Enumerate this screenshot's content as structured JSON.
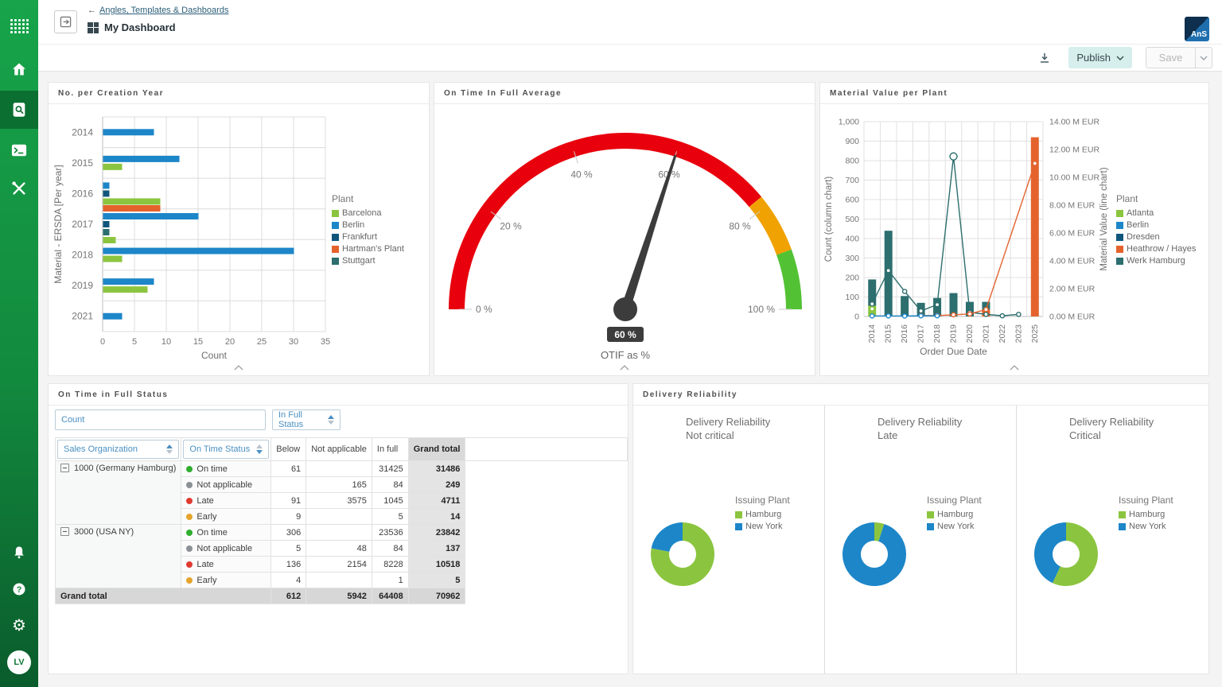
{
  "sidebar": {
    "avatar_initials": "LV"
  },
  "header": {
    "breadcrumb": "Angles, Templates & Dashboards",
    "title": "My Dashboard",
    "logo": "AnS"
  },
  "toolbar": {
    "publish": "Publish",
    "save": "Save"
  },
  "chart_data": [
    {
      "id": "creation_year",
      "type": "bar",
      "orientation": "horizontal",
      "title": "No. per Creation Year",
      "xlabel": "Count",
      "ylabel": "Material - ERSDA [Per year]",
      "xlim": [
        0,
        35
      ],
      "xticks": [
        0,
        5,
        10,
        15,
        20,
        25,
        30,
        35
      ],
      "grid": true,
      "legend_position": "right",
      "legend_title": "Plant",
      "legend": [
        {
          "label": "Barcelona",
          "color": "#8bc53f"
        },
        {
          "label": "Berlin",
          "color": "#1c86c8"
        },
        {
          "label": "Frankfurt",
          "color": "#10567c"
        },
        {
          "label": "Hartman's Plant",
          "color": "#e4632d"
        },
        {
          "label": "Stuttgart",
          "color": "#2d6e6e"
        }
      ],
      "categories": [
        "2014",
        "2015",
        "2016",
        "2017",
        "2018",
        "2019",
        "2021"
      ],
      "bars": [
        [
          {
            "plant": "Berlin",
            "value": 8
          }
        ],
        [
          {
            "plant": "Berlin",
            "value": 12
          },
          {
            "plant": "Barcelona",
            "value": 3
          }
        ],
        [
          {
            "plant": "Berlin",
            "value": 1
          },
          {
            "plant": "Frankfurt",
            "value": 1
          },
          {
            "plant": "Barcelona",
            "value": 9
          }
        ],
        [
          {
            "plant": "Hartman's Plant",
            "value": 9
          },
          {
            "plant": "Berlin",
            "value": 15
          },
          {
            "plant": "Frankfurt",
            "value": 1
          },
          {
            "plant": "Stuttgart",
            "value": 1
          },
          {
            "plant": "Barcelona",
            "value": 2
          }
        ],
        [
          {
            "plant": "Berlin",
            "value": 30
          },
          {
            "plant": "Barcelona",
            "value": 3
          }
        ],
        [
          {
            "plant": "Berlin",
            "value": 8
          },
          {
            "plant": "Barcelona",
            "value": 7
          }
        ],
        [
          {
            "plant": "Berlin",
            "value": 3
          }
        ]
      ]
    },
    {
      "id": "otif_gauge",
      "type": "gauge",
      "title": "On Time In Full Average",
      "value": 60,
      "value_label": "60 %",
      "unit_label": "OTIF as %",
      "min": 0,
      "max": 100,
      "ticks": [
        0,
        20,
        40,
        60,
        80,
        100
      ],
      "tick_labels": [
        "0 %",
        "20 %",
        "40 %",
        "60 %",
        "80 %",
        "100 %"
      ],
      "needle_color": "#3c3c3c",
      "zones": [
        {
          "from": 0,
          "to": 78,
          "color": "#e8000d"
        },
        {
          "from": 78,
          "to": 89,
          "color": "#f0a202"
        },
        {
          "from": 89,
          "to": 100,
          "color": "#52c234"
        }
      ]
    },
    {
      "id": "material_value",
      "type": "combo",
      "title": "Material Value per Plant",
      "xlabel": "Order Due Date",
      "ylabel_left": "Count (column chart)",
      "ylabel_right": "Material Value (line chart)",
      "ylim_left": [
        0,
        1000
      ],
      "yticks_left": [
        0,
        100,
        200,
        300,
        400,
        500,
        600,
        700,
        800,
        900,
        1000
      ],
      "ylim_right_meur": [
        0,
        14
      ],
      "yticks_right_meur": [
        0,
        2,
        4,
        6,
        8,
        10,
        12,
        14
      ],
      "grid": true,
      "legend_title": "Plant",
      "legend": [
        {
          "label": "Atlanta",
          "color": "#8bc53f"
        },
        {
          "label": "Berlin",
          "color": "#1c86c8"
        },
        {
          "label": "Dresden",
          "color": "#10567c"
        },
        {
          "label": "Heathrow / Hayes",
          "color": "#e4632d"
        },
        {
          "label": "Werk Hamburg",
          "color": "#2d6e6e"
        }
      ],
      "categories": [
        "2014",
        "2015",
        "2016",
        "2017",
        "2018",
        "2019",
        "2020",
        "2021",
        "2022",
        "2023",
        "2025"
      ],
      "columns": [
        [
          {
            "plant": "Atlanta",
            "value": 55
          },
          {
            "plant": "Werk Hamburg",
            "value": 135
          }
        ],
        [
          {
            "plant": "Werk Hamburg",
            "value": 440
          }
        ],
        [
          {
            "plant": "Werk Hamburg",
            "value": 105
          }
        ],
        [
          {
            "plant": "Werk Hamburg",
            "value": 70
          }
        ],
        [
          {
            "plant": "Werk Hamburg",
            "value": 95
          }
        ],
        [
          {
            "plant": "Werk Hamburg",
            "value": 120
          }
        ],
        [
          {
            "plant": "Werk Hamburg",
            "value": 75
          }
        ],
        [
          {
            "plant": "Heathrow / Hayes",
            "value": 35
          },
          {
            "plant": "Werk Hamburg",
            "value": 40
          }
        ],
        [],
        [],
        [
          {
            "plant": "Heathrow / Hayes",
            "value": 920
          }
        ]
      ],
      "lines": [
        {
          "plant": "Werk Hamburg",
          "values_meur": [
            0.9,
            3.3,
            1.8,
            0.4,
            0.85,
            11.5,
            0.3,
            0.15,
            0.05,
            0.15,
            null
          ]
        },
        {
          "plant": "Heathrow / Hayes",
          "values_meur": [
            null,
            null,
            null,
            0.07,
            0.07,
            0.12,
            0.18,
            0.5,
            null,
            null,
            11.0
          ]
        },
        {
          "plant": "Berlin",
          "values_meur": [
            0.04,
            0.04,
            0.03,
            0.05,
            0.05,
            null,
            null,
            null,
            null,
            null,
            null
          ]
        },
        {
          "plant": "Atlanta",
          "values_meur": [
            0.55,
            null,
            null,
            null,
            null,
            null,
            null,
            null,
            null,
            null,
            null
          ]
        }
      ]
    },
    {
      "id": "delivery_reliability",
      "type": "donut-multi",
      "title": "Delivery Reliability",
      "legend_title": "Issuing Plant",
      "series_colors": {
        "Hamburg": "#8bc53f",
        "New York": "#1c86c8"
      },
      "charts": [
        {
          "subtitle": [
            "Delivery Reliability",
            "Not critical"
          ],
          "slices": [
            {
              "label": "Hamburg",
              "pct": 78
            },
            {
              "label": "New York",
              "pct": 22
            }
          ]
        },
        {
          "subtitle": [
            "Delivery Reliability",
            "Late"
          ],
          "slices": [
            {
              "label": "Hamburg",
              "pct": 5
            },
            {
              "label": "New York",
              "pct": 95
            }
          ]
        },
        {
          "subtitle": [
            "Delivery Reliability",
            "Critical"
          ],
          "slices": [
            {
              "label": "Hamburg",
              "pct": 57
            },
            {
              "label": "New York",
              "pct": 43
            }
          ]
        }
      ]
    }
  ],
  "table": {
    "title": "On Time in Full Status",
    "measure": "Count",
    "column_field": {
      "label": "In Full Status",
      "sort": "asc"
    },
    "row_fields": [
      {
        "label": "Sales Organization",
        "sort": "asc"
      },
      {
        "label": "On Time Status",
        "sort": "desc"
      }
    ],
    "value_columns": [
      "Below",
      "Not applicable",
      "In full",
      "Grand total"
    ],
    "status_colors": {
      "On time": "#2eae2e",
      "Not applicable": "#8c9196",
      "Late": "#e03a2f",
      "Early": "#e5a42c"
    },
    "groups": [
      {
        "label": "1000 (Germany Hamburg)",
        "rows": [
          {
            "status": "On time",
            "below": "61",
            "not_applicable": "",
            "in_full": "31425",
            "grand_total": "31486"
          },
          {
            "status": "Not applicable",
            "below": "",
            "not_applicable": "165",
            "in_full": "84",
            "grand_total": "249"
          },
          {
            "status": "Late",
            "below": "91",
            "not_applicable": "3575",
            "in_full": "1045",
            "grand_total": "4711"
          },
          {
            "status": "Early",
            "below": "9",
            "not_applicable": "",
            "in_full": "5",
            "grand_total": "14"
          }
        ]
      },
      {
        "label": "3000 (USA NY)",
        "rows": [
          {
            "status": "On time",
            "below": "306",
            "not_applicable": "",
            "in_full": "23536",
            "grand_total": "23842"
          },
          {
            "status": "Not applicable",
            "below": "5",
            "not_applicable": "48",
            "in_full": "84",
            "grand_total": "137"
          },
          {
            "status": "Late",
            "below": "136",
            "not_applicable": "2154",
            "in_full": "8228",
            "grand_total": "10518"
          },
          {
            "status": "Early",
            "below": "4",
            "not_applicable": "",
            "in_full": "1",
            "grand_total": "5"
          }
        ]
      }
    ],
    "grand_total": {
      "label": "Grand total",
      "below": "612",
      "not_applicable": "5942",
      "in_full": "64408",
      "grand_total": "70962"
    }
  }
}
